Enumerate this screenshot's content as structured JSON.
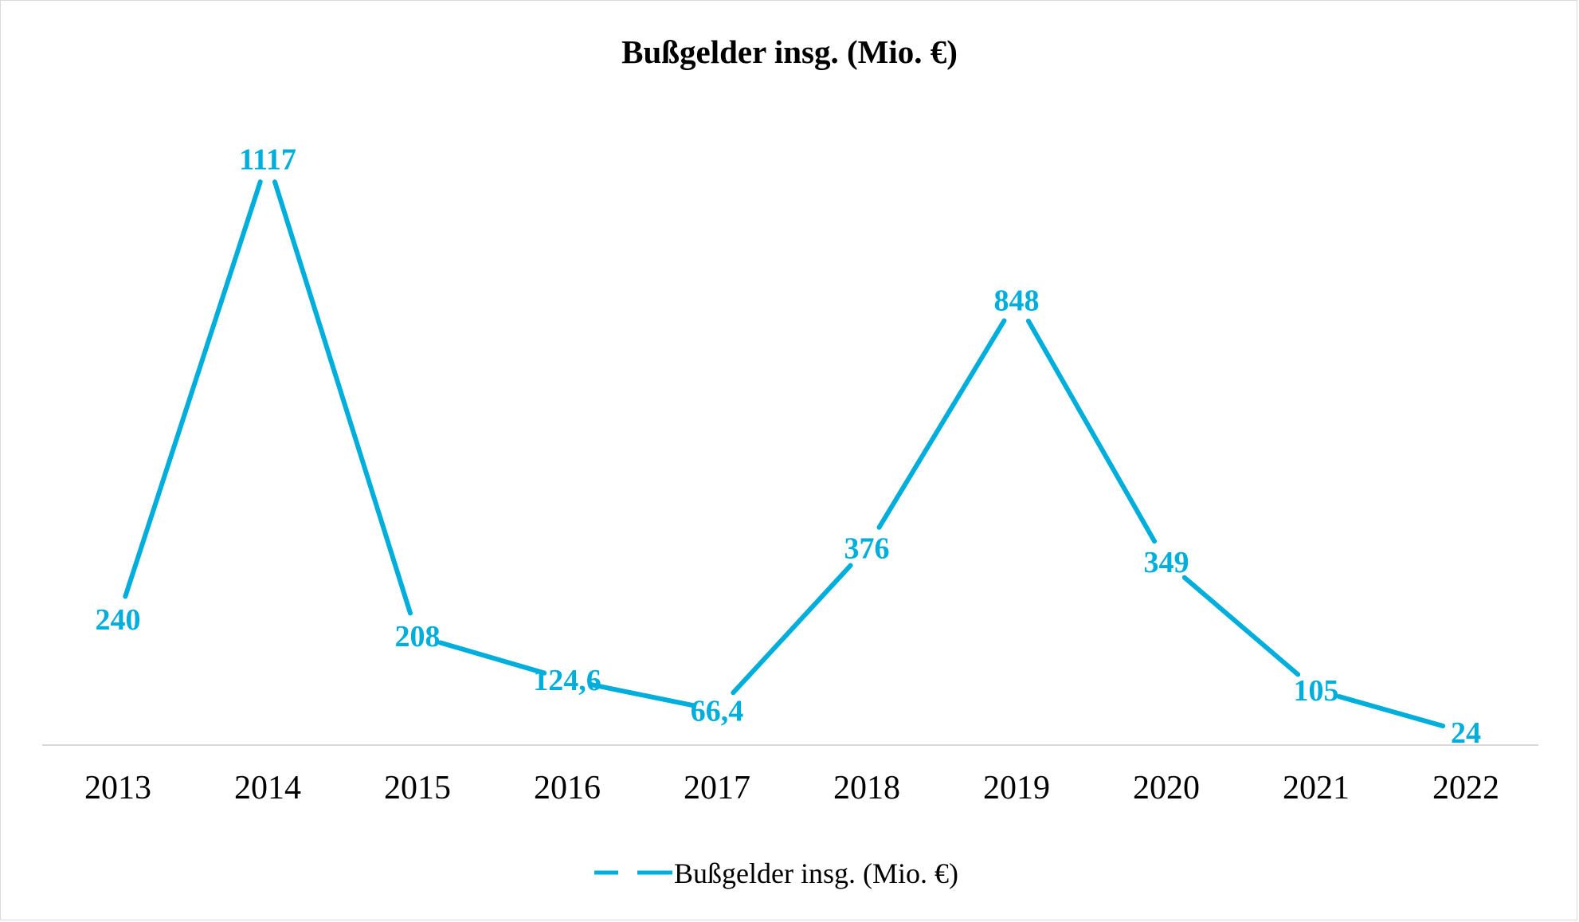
{
  "chart_data": {
    "type": "line",
    "title": "Bußgelder insg. (Mio. €)",
    "xlabel": "",
    "ylabel": "",
    "categories": [
      "2013",
      "2014",
      "2015",
      "2016",
      "2017",
      "2018",
      "2019",
      "2020",
      "2021",
      "2022"
    ],
    "series": [
      {
        "name": "Bußgelder insg. (Mio. €)",
        "values": [
          240,
          1117,
          208,
          124.6,
          66.4,
          376,
          848,
          349,
          105,
          24
        ],
        "labels": [
          "240",
          "1117",
          "208",
          "124,6",
          "66,4",
          "376",
          "848",
          "349",
          "105",
          "24"
        ],
        "color": "#00AEDB"
      }
    ],
    "ylim": [
      0,
      1200
    ],
    "grid": false,
    "legend": "bottom"
  }
}
